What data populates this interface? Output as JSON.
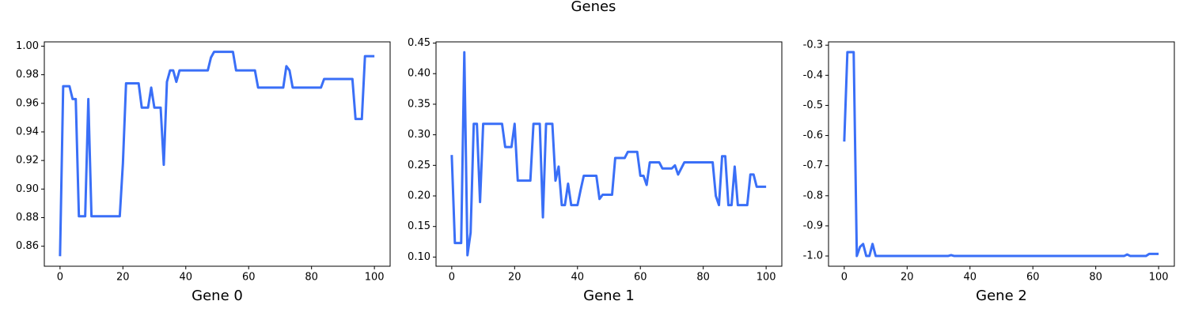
{
  "title": "Genes",
  "chart_data": [
    {
      "type": "line",
      "xlabel": "Gene 0",
      "color": "#3a6ff7",
      "x": [
        0,
        1,
        2,
        3,
        4,
        5,
        6,
        7,
        8,
        9,
        10,
        11,
        12,
        13,
        14,
        15,
        16,
        17,
        18,
        19,
        20,
        21,
        22,
        23,
        24,
        25,
        26,
        27,
        28,
        29,
        30,
        31,
        32,
        33,
        34,
        35,
        36,
        37,
        38,
        39,
        40,
        41,
        42,
        43,
        44,
        45,
        46,
        47,
        48,
        49,
        50,
        51,
        52,
        53,
        54,
        55,
        56,
        57,
        58,
        59,
        60,
        61,
        62,
        63,
        64,
        65,
        66,
        67,
        68,
        69,
        70,
        71,
        72,
        73,
        74,
        75,
        76,
        77,
        78,
        79,
        80,
        81,
        82,
        83,
        84,
        85,
        86,
        87,
        88,
        89,
        90,
        91,
        92,
        93,
        94,
        95,
        96,
        97,
        98,
        99,
        100
      ],
      "values": [
        0.853,
        0.972,
        0.972,
        0.972,
        0.963,
        0.963,
        0.881,
        0.881,
        0.881,
        0.963,
        0.881,
        0.881,
        0.881,
        0.881,
        0.881,
        0.881,
        0.881,
        0.881,
        0.881,
        0.881,
        0.918,
        0.974,
        0.974,
        0.974,
        0.974,
        0.974,
        0.957,
        0.957,
        0.957,
        0.971,
        0.957,
        0.957,
        0.957,
        0.917,
        0.975,
        0.983,
        0.983,
        0.975,
        0.983,
        0.983,
        0.983,
        0.983,
        0.983,
        0.983,
        0.983,
        0.983,
        0.983,
        0.983,
        0.992,
        0.996,
        0.996,
        0.996,
        0.996,
        0.996,
        0.996,
        0.996,
        0.983,
        0.983,
        0.983,
        0.983,
        0.983,
        0.983,
        0.983,
        0.971,
        0.971,
        0.971,
        0.971,
        0.971,
        0.971,
        0.971,
        0.971,
        0.971,
        0.986,
        0.983,
        0.971,
        0.971,
        0.971,
        0.971,
        0.971,
        0.971,
        0.971,
        0.971,
        0.971,
        0.971,
        0.977,
        0.977,
        0.977,
        0.977,
        0.977,
        0.977,
        0.977,
        0.977,
        0.977,
        0.977,
        0.949,
        0.949,
        0.949,
        0.993,
        0.993,
        0.993,
        0.993
      ],
      "xlim": [
        -5,
        105
      ],
      "xticks": [
        0,
        20,
        40,
        60,
        80,
        100
      ],
      "ylim": [
        0.846,
        1.003
      ],
      "yticks": [
        0.86,
        0.88,
        {
          "value": 0.9,
          "label": "0.90"
        },
        0.92,
        0.94,
        0.96,
        0.98,
        {
          "value": 1,
          "label": "1.00"
        }
      ]
    },
    {
      "type": "line",
      "xlabel": "Gene 1",
      "color": "#3a6ff7",
      "x": [
        0,
        1,
        2,
        3,
        4,
        5,
        6,
        7,
        8,
        9,
        10,
        11,
        12,
        13,
        14,
        15,
        16,
        17,
        18,
        19,
        20,
        21,
        22,
        23,
        24,
        25,
        26,
        27,
        28,
        29,
        30,
        31,
        32,
        33,
        34,
        35,
        36,
        37,
        38,
        39,
        40,
        41,
        42,
        43,
        44,
        45,
        46,
        47,
        48,
        49,
        50,
        51,
        52,
        53,
        54,
        55,
        56,
        57,
        58,
        59,
        60,
        61,
        62,
        63,
        64,
        65,
        66,
        67,
        68,
        69,
        70,
        71,
        72,
        73,
        74,
        75,
        76,
        77,
        78,
        79,
        80,
        81,
        82,
        83,
        84,
        85,
        86,
        87,
        88,
        89,
        90,
        91,
        92,
        93,
        94,
        95,
        96,
        97,
        98,
        99,
        100
      ],
      "values": [
        0.267,
        0.123,
        0.123,
        0.123,
        0.435,
        0.103,
        0.14,
        0.318,
        0.318,
        0.19,
        0.318,
        0.318,
        0.318,
        0.318,
        0.318,
        0.318,
        0.318,
        0.28,
        0.28,
        0.28,
        0.318,
        0.225,
        0.225,
        0.225,
        0.225,
        0.225,
        0.318,
        0.318,
        0.318,
        0.165,
        0.318,
        0.318,
        0.318,
        0.225,
        0.248,
        0.185,
        0.185,
        0.22,
        0.185,
        0.185,
        0.185,
        0.21,
        0.233,
        0.233,
        0.233,
        0.233,
        0.233,
        0.195,
        0.202,
        0.202,
        0.202,
        0.202,
        0.262,
        0.262,
        0.262,
        0.262,
        0.272,
        0.272,
        0.272,
        0.272,
        0.233,
        0.233,
        0.218,
        0.255,
        0.255,
        0.255,
        0.255,
        0.245,
        0.245,
        0.245,
        0.245,
        0.25,
        0.235,
        0.245,
        0.255,
        0.255,
        0.255,
        0.255,
        0.255,
        0.255,
        0.255,
        0.255,
        0.255,
        0.255,
        0.2,
        0.185,
        0.265,
        0.265,
        0.185,
        0.185,
        0.248,
        0.185,
        0.185,
        0.185,
        0.185,
        0.235,
        0.235,
        0.215,
        0.215,
        0.215,
        0.215
      ],
      "xlim": [
        -5,
        105
      ],
      "xticks": [
        0,
        20,
        40,
        60,
        80,
        100
      ],
      "ylim": [
        0.085,
        0.452
      ],
      "yticks": [
        {
          "value": 0.1,
          "label": "0.10"
        },
        0.15,
        {
          "value": 0.2,
          "label": "0.20"
        },
        0.25,
        {
          "value": 0.3,
          "label": "0.30"
        },
        0.35,
        {
          "value": 0.4,
          "label": "0.40"
        },
        0.45
      ]
    },
    {
      "type": "line",
      "xlabel": "Gene 2",
      "color": "#3a6ff7",
      "x": [
        0,
        1,
        2,
        3,
        4,
        5,
        6,
        7,
        8,
        9,
        10,
        11,
        12,
        13,
        14,
        15,
        16,
        17,
        18,
        19,
        20,
        21,
        22,
        23,
        24,
        25,
        26,
        27,
        28,
        29,
        30,
        31,
        32,
        33,
        34,
        35,
        36,
        37,
        38,
        39,
        40,
        41,
        42,
        43,
        44,
        45,
        46,
        47,
        48,
        49,
        50,
        51,
        52,
        53,
        54,
        55,
        56,
        57,
        58,
        59,
        60,
        61,
        62,
        63,
        64,
        65,
        66,
        67,
        68,
        69,
        70,
        71,
        72,
        73,
        74,
        75,
        76,
        77,
        78,
        79,
        80,
        81,
        82,
        83,
        84,
        85,
        86,
        87,
        88,
        89,
        90,
        91,
        92,
        93,
        94,
        95,
        96,
        97,
        98,
        99,
        100
      ],
      "values": [
        -0.62,
        -0.323,
        -0.323,
        -0.323,
        -1,
        -0.97,
        -0.96,
        -1,
        -1,
        -0.96,
        -1,
        -1,
        -1,
        -1,
        -1,
        -1,
        -1,
        -1,
        -1,
        -1,
        -1,
        -1,
        -1,
        -1,
        -1,
        -1,
        -1,
        -1,
        -1,
        -1,
        -1,
        -1,
        -1,
        -1,
        -0.997,
        -1,
        -1,
        -1,
        -1,
        -1,
        -1,
        -1,
        -1,
        -1,
        -1,
        -1,
        -1,
        -1,
        -1,
        -1,
        -1,
        -1,
        -1,
        -1,
        -1,
        -1,
        -1,
        -1,
        -1,
        -1,
        -1,
        -1,
        -1,
        -1,
        -1,
        -1,
        -1,
        -1,
        -1,
        -1,
        -1,
        -1,
        -1,
        -1,
        -1,
        -1,
        -1,
        -1,
        -1,
        -1,
        -1,
        -1,
        -1,
        -1,
        -1,
        -1,
        -1,
        -1,
        -1,
        -1,
        -0.995,
        -1,
        -1,
        -1,
        -1,
        -1,
        -1,
        -0.993,
        -0.993,
        -0.993,
        -0.993
      ],
      "xlim": [
        -5,
        105
      ],
      "xticks": [
        0,
        20,
        40,
        60,
        80,
        100
      ],
      "ylim": [
        -1.034,
        -0.289
      ],
      "yticks": [
        {
          "value": -1,
          "label": "-1.0"
        },
        -0.9,
        -0.8,
        -0.7,
        -0.6,
        -0.5,
        -0.4,
        -0.3
      ]
    }
  ]
}
